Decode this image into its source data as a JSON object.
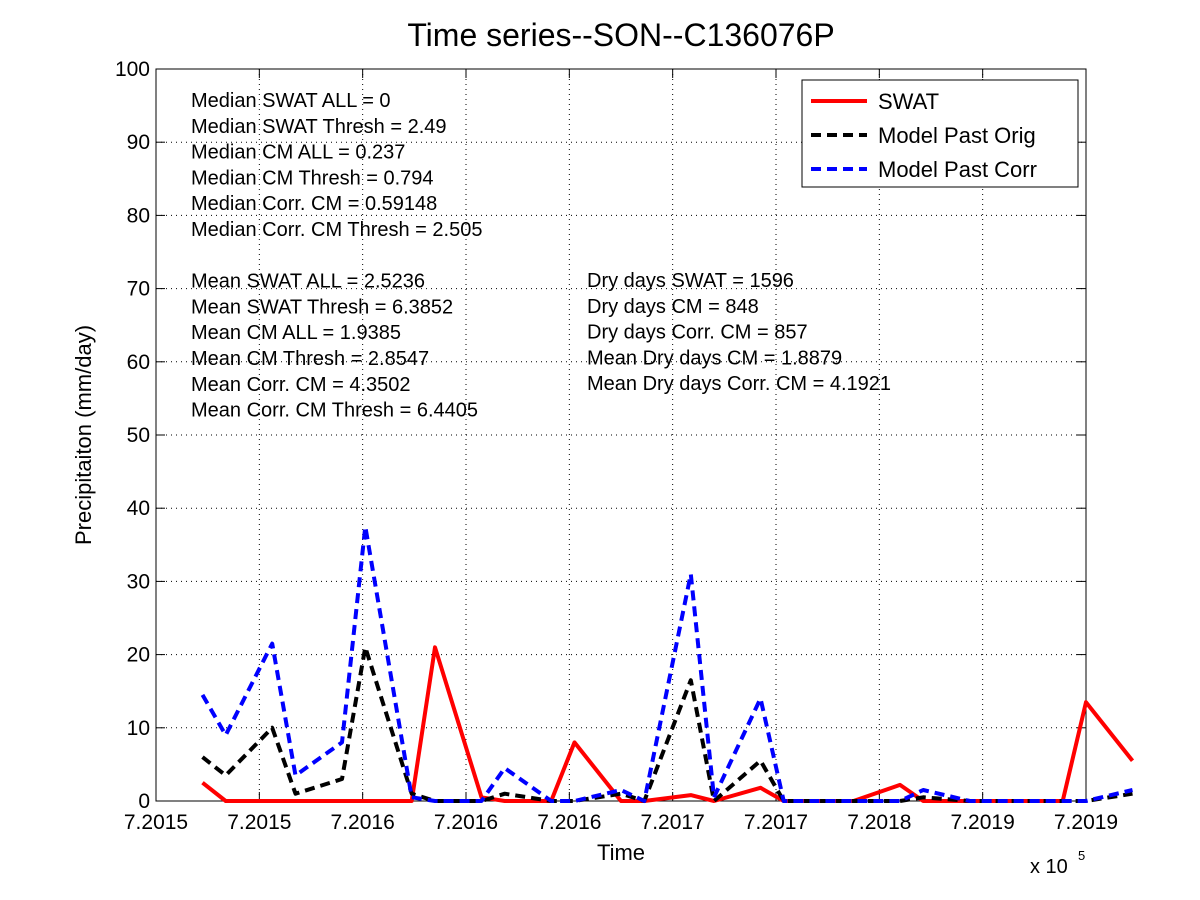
{
  "chart_data": {
    "type": "line",
    "title": "Time series--SON--C136076P",
    "xlabel": "Time",
    "ylabel": "Precipitaiton (mm/day)",
    "x_exponent_label": "x 10",
    "x_exponent_power": "5",
    "xlim": [
      7.2015,
      7.2019
    ],
    "ylim": [
      0,
      100
    ],
    "x_tick_labels": [
      "7.2015",
      "7.2015",
      "7.2016",
      "7.2016",
      "7.2016",
      "7.2017",
      "7.2017",
      "7.2018",
      "7.2019",
      "7.2019"
    ],
    "y_ticks": [
      0,
      10,
      20,
      30,
      40,
      50,
      60,
      70,
      80,
      90,
      100
    ],
    "grid": true,
    "legend_position": "top-right",
    "x": [
      7.20152,
      7.20153,
      7.20155,
      7.20156,
      7.20158,
      7.20159,
      7.20161,
      7.20162,
      7.20164,
      7.20165,
      7.20167,
      7.20168,
      7.2017,
      7.20171,
      7.20173,
      7.20174,
      7.20176,
      7.20177,
      7.20179,
      7.2018,
      7.20182,
      7.20183,
      7.20185,
      7.20186,
      7.20188,
      7.20189,
      7.2019,
      7.20192
    ],
    "series": [
      {
        "name": "SWAT",
        "color": "#ff0000",
        "dash": "solid",
        "values": [
          2.5,
          0,
          0,
          0,
          0,
          0,
          0,
          21,
          0.5,
          0,
          0,
          8,
          0,
          0,
          0.8,
          0,
          1.8,
          0,
          0,
          0,
          2.2,
          0,
          0,
          0,
          0,
          0,
          13.5,
          5.5
        ]
      },
      {
        "name": "Model Past Orig",
        "color": "#000000",
        "dash": "dashed",
        "values": [
          6,
          3.5,
          10,
          1,
          3,
          21,
          1,
          0,
          0,
          1,
          0,
          0,
          1,
          0,
          16.5,
          0,
          5.5,
          0,
          0,
          0,
          0,
          0.5,
          0,
          0,
          0,
          0,
          0,
          1
        ]
      },
      {
        "name": "Model Past Corr",
        "color": "#0000ff",
        "dash": "dashed",
        "values": [
          14.5,
          9,
          21.5,
          3.5,
          8,
          37.5,
          0.5,
          0,
          0,
          4.5,
          0,
          0,
          1.5,
          0,
          31,
          0.5,
          14,
          0,
          0,
          0,
          0,
          1.5,
          0,
          0,
          0,
          0,
          0,
          1.5
        ]
      }
    ],
    "annotations_left": [
      "Median SWAT ALL = 0",
      "Median SWAT Thresh = 2.49",
      "Median CM ALL = 0.237",
      "Median CM Thresh = 0.794",
      "Median Corr. CM = 0.59148",
      "Median Corr. CM Thresh = 2.505",
      "",
      "Mean SWAT ALL = 2.5236",
      "Mean SWAT Thresh = 6.3852",
      "Mean CM ALL = 1.9385",
      "Mean CM Thresh = 2.8547",
      "Mean Corr. CM = 4.3502",
      "Mean Corr. CM Thresh = 6.4405"
    ],
    "annotations_right": [
      "Dry days SWAT = 1596",
      "Dry days CM = 848",
      "Dry days Corr. CM = 857",
      "Mean Dry days CM = 1.8879",
      "Mean Dry days Corr. CM = 4.1921"
    ]
  }
}
